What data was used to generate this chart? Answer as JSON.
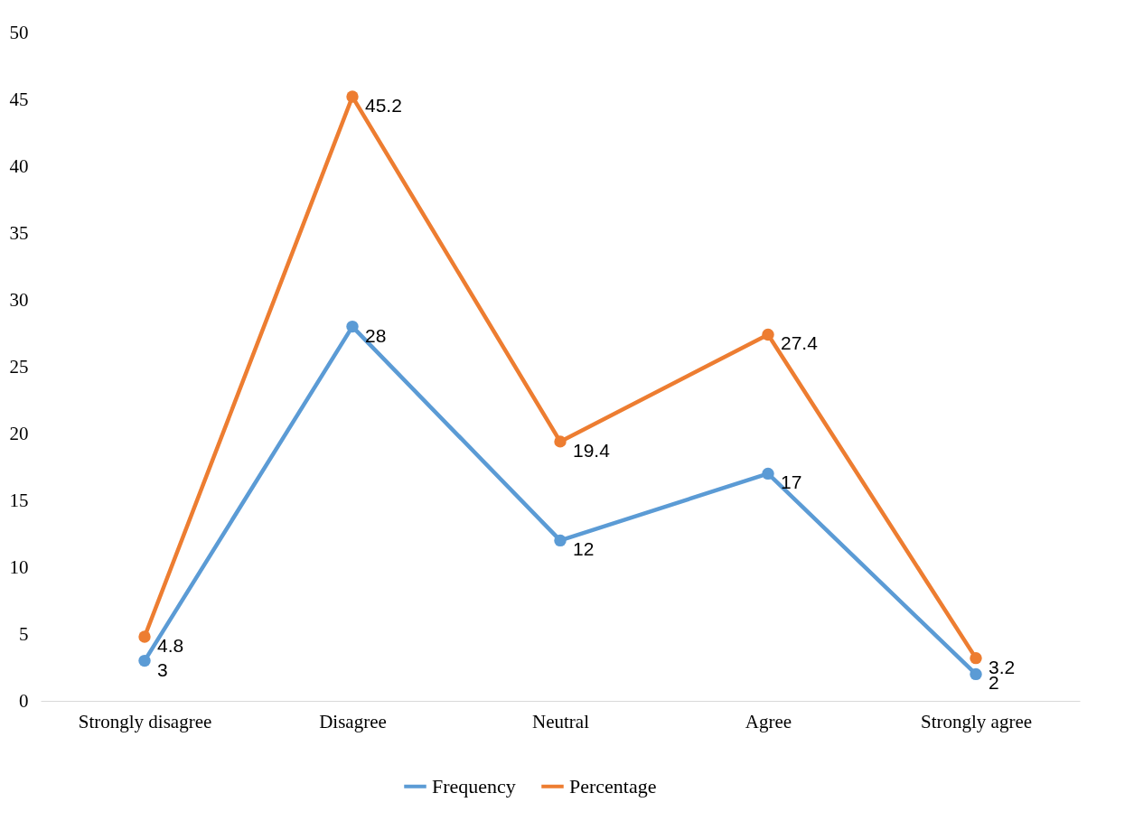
{
  "chart_data": {
    "type": "line",
    "categories": [
      "Strongly disagree",
      "Disagree",
      "Neutral",
      "Agree",
      "Strongly agree"
    ],
    "series": [
      {
        "name": "Frequency",
        "color": "#5b9bd5",
        "values": [
          3,
          28,
          12,
          17,
          2
        ]
      },
      {
        "name": "Percentage",
        "color": "#ed7d31",
        "values": [
          4.8,
          45.2,
          19.4,
          27.4,
          3.2
        ]
      }
    ],
    "ylim": [
      0,
      50
    ],
    "yticks": [
      0,
      5,
      10,
      15,
      20,
      25,
      30,
      35,
      40,
      45,
      50
    ],
    "grid": false,
    "legend": "bottom",
    "marker": "circle",
    "line_style": "solid",
    "data_labels": true
  }
}
